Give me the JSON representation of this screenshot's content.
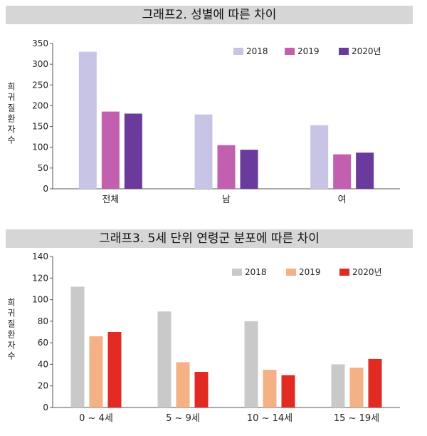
{
  "chart_data": [
    {
      "type": "bar",
      "title": "그래프2. 성별에 따른 차이",
      "ylabel": "희귀질환자수",
      "categories": [
        "전체",
        "남",
        "여"
      ],
      "ylim": [
        0,
        350
      ],
      "yticks": [
        0,
        50,
        100,
        150,
        200,
        250,
        300,
        350
      ],
      "series": [
        {
          "name": "2018",
          "color": "#c8c4e6",
          "values": [
            330,
            179,
            153
          ]
        },
        {
          "name": "2019",
          "color": "#c25fae",
          "values": [
            186,
            105,
            83
          ]
        },
        {
          "name": "2020년",
          "color": "#6a3a9c",
          "values": [
            181,
            94,
            87
          ]
        }
      ],
      "legend": "top-right",
      "grid": false
    },
    {
      "type": "bar",
      "title": "그래프3. 5세 단위 연령군 분포에 따른 차이",
      "ylabel": "희귀질환자수",
      "categories": [
        "0 ~ 4세",
        "5 ~ 9세",
        "10 ~ 14세",
        "15 ~ 19세"
      ],
      "ylim": [
        0,
        140
      ],
      "yticks": [
        0,
        20,
        40,
        60,
        80,
        100,
        120,
        140
      ],
      "series": [
        {
          "name": "2018",
          "color": "#c9c9c9",
          "values": [
            112,
            89,
            80,
            40
          ]
        },
        {
          "name": "2019",
          "color": "#f4b185",
          "values": [
            66,
            42,
            35,
            37
          ]
        },
        {
          "name": "2020년",
          "color": "#e02a22",
          "values": [
            70,
            33,
            30,
            45
          ]
        }
      ],
      "legend": "top-right",
      "grid": false
    }
  ]
}
